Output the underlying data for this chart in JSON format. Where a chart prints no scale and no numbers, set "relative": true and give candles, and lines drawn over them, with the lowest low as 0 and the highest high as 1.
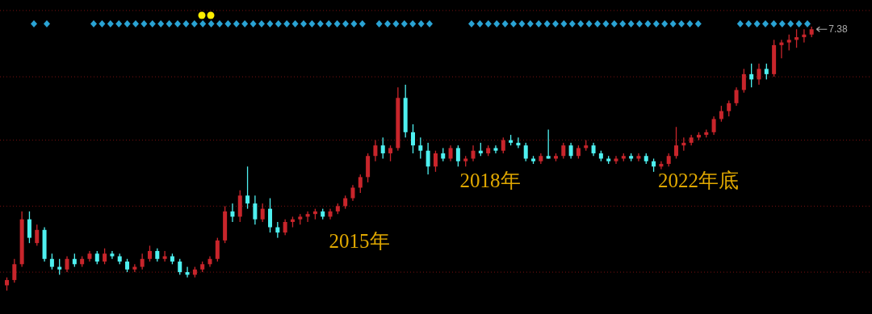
{
  "chart_data": {
    "type": "candlestick",
    "relative": true,
    "categories": [
      null,
      null,
      null,
      null,
      null,
      null,
      null,
      null,
      null,
      null,
      null,
      null,
      null,
      null,
      null,
      null,
      null,
      null,
      null,
      null,
      null,
      null,
      null,
      null,
      null,
      null,
      null,
      null,
      null,
      null,
      null,
      null,
      null,
      null,
      null,
      null,
      null,
      null,
      null,
      null,
      null,
      null,
      null,
      null,
      null,
      null,
      null,
      null,
      null,
      null,
      null,
      null,
      null,
      null,
      null,
      null,
      null,
      null,
      null,
      null,
      null,
      null,
      null,
      null,
      null,
      null,
      null,
      null,
      null,
      null,
      null,
      null,
      null,
      null,
      null,
      null,
      null,
      null,
      null,
      null,
      null,
      null,
      null,
      null,
      null,
      null,
      null,
      null,
      null,
      null,
      null,
      null,
      null,
      null,
      null,
      null,
      null,
      null,
      null,
      null,
      null,
      null,
      null,
      null,
      null,
      null,
      null,
      null
    ],
    "ohlc": [
      [
        0.02,
        0.05,
        0,
        0.04
      ],
      [
        0.04,
        0.12,
        0.03,
        0.1
      ],
      [
        0.1,
        0.3,
        0.09,
        0.27
      ],
      [
        0.27,
        0.3,
        0.18,
        0.2
      ],
      [
        0.18,
        0.25,
        0.17,
        0.23
      ],
      [
        0.23,
        0.24,
        0.11,
        0.12
      ],
      [
        0.12,
        0.14,
        0.08,
        0.09
      ],
      [
        0.09,
        0.12,
        0.06,
        0.08
      ],
      [
        0.08,
        0.13,
        0.07,
        0.12
      ],
      [
        0.12,
        0.14,
        0.09,
        0.1
      ],
      [
        0.1,
        0.13,
        0.09,
        0.12
      ],
      [
        0.12,
        0.15,
        0.11,
        0.14
      ],
      [
        0.14,
        0.15,
        0.1,
        0.11
      ],
      [
        0.11,
        0.16,
        0.1,
        0.14
      ],
      [
        0.14,
        0.15,
        0.12,
        0.13
      ],
      [
        0.13,
        0.14,
        0.1,
        0.11
      ],
      [
        0.11,
        0.12,
        0.07,
        0.08
      ],
      [
        0.08,
        0.1,
        0.07,
        0.09
      ],
      [
        0.09,
        0.14,
        0.08,
        0.12
      ],
      [
        0.12,
        0.17,
        0.11,
        0.15
      ],
      [
        0.15,
        0.16,
        0.11,
        0.12
      ],
      [
        0.12,
        0.15,
        0.11,
        0.13
      ],
      [
        0.13,
        0.14,
        0.1,
        0.11
      ],
      [
        0.11,
        0.12,
        0.06,
        0.07
      ],
      [
        0.07,
        0.09,
        0.05,
        0.06
      ],
      [
        0.06,
        0.09,
        0.05,
        0.08
      ],
      [
        0.08,
        0.11,
        0.07,
        0.1
      ],
      [
        0.1,
        0.13,
        0.09,
        0.12
      ],
      [
        0.12,
        0.2,
        0.11,
        0.19
      ],
      [
        0.19,
        0.32,
        0.18,
        0.3
      ],
      [
        0.3,
        0.33,
        0.26,
        0.28
      ],
      [
        0.28,
        0.38,
        0.26,
        0.36
      ],
      [
        0.36,
        0.47,
        0.31,
        0.33
      ],
      [
        0.33,
        0.36,
        0.25,
        0.27
      ],
      [
        0.27,
        0.33,
        0.26,
        0.31
      ],
      [
        0.31,
        0.35,
        0.22,
        0.24
      ],
      [
        0.24,
        0.26,
        0.2,
        0.22
      ],
      [
        0.22,
        0.27,
        0.21,
        0.26
      ],
      [
        0.26,
        0.28,
        0.24,
        0.27
      ],
      [
        0.27,
        0.29,
        0.25,
        0.28
      ],
      [
        0.28,
        0.3,
        0.26,
        0.29
      ],
      [
        0.29,
        0.31,
        0.27,
        0.3
      ],
      [
        0.3,
        0.31,
        0.27,
        0.28
      ],
      [
        0.28,
        0.31,
        0.27,
        0.3
      ],
      [
        0.3,
        0.33,
        0.29,
        0.32
      ],
      [
        0.32,
        0.36,
        0.31,
        0.35
      ],
      [
        0.35,
        0.4,
        0.34,
        0.39
      ],
      [
        0.39,
        0.44,
        0.37,
        0.43
      ],
      [
        0.43,
        0.52,
        0.41,
        0.51
      ],
      [
        0.51,
        0.57,
        0.49,
        0.55
      ],
      [
        0.55,
        0.58,
        0.5,
        0.52
      ],
      [
        0.52,
        0.55,
        0.49,
        0.54
      ],
      [
        0.54,
        0.77,
        0.53,
        0.73
      ],
      [
        0.73,
        0.78,
        0.58,
        0.6
      ],
      [
        0.6,
        0.63,
        0.52,
        0.55
      ],
      [
        0.55,
        0.58,
        0.5,
        0.53
      ],
      [
        0.53,
        0.56,
        0.44,
        0.47
      ],
      [
        0.47,
        0.53,
        0.45,
        0.52
      ],
      [
        0.52,
        0.54,
        0.49,
        0.5
      ],
      [
        0.5,
        0.55,
        0.49,
        0.54
      ],
      [
        0.54,
        0.55,
        0.47,
        0.49
      ],
      [
        0.49,
        0.51,
        0.47,
        0.5
      ],
      [
        0.5,
        0.55,
        0.49,
        0.53
      ],
      [
        0.53,
        0.56,
        0.51,
        0.52
      ],
      [
        0.52,
        0.55,
        0.51,
        0.54
      ],
      [
        0.54,
        0.55,
        0.52,
        0.53
      ],
      [
        0.53,
        0.58,
        0.52,
        0.57
      ],
      [
        0.57,
        0.59,
        0.55,
        0.56
      ],
      [
        0.56,
        0.58,
        0.54,
        0.55
      ],
      [
        0.55,
        0.56,
        0.49,
        0.5
      ],
      [
        0.5,
        0.51,
        0.48,
        0.49
      ],
      [
        0.49,
        0.52,
        0.48,
        0.51
      ],
      [
        0.51,
        0.61,
        0.5,
        0.5
      ],
      [
        0.5,
        0.52,
        0.49,
        0.51
      ],
      [
        0.51,
        0.56,
        0.5,
        0.55
      ],
      [
        0.55,
        0.56,
        0.5,
        0.51
      ],
      [
        0.51,
        0.55,
        0.5,
        0.54
      ],
      [
        0.54,
        0.57,
        0.53,
        0.55
      ],
      [
        0.55,
        0.56,
        0.51,
        0.52
      ],
      [
        0.52,
        0.53,
        0.49,
        0.5
      ],
      [
        0.5,
        0.51,
        0.48,
        0.49
      ],
      [
        0.49,
        0.51,
        0.48,
        0.5
      ],
      [
        0.5,
        0.52,
        0.49,
        0.51
      ],
      [
        0.51,
        0.52,
        0.49,
        0.5
      ],
      [
        0.5,
        0.52,
        0.49,
        0.51
      ],
      [
        0.51,
        0.52,
        0.48,
        0.49
      ],
      [
        0.49,
        0.5,
        0.45,
        0.47
      ],
      [
        0.47,
        0.49,
        0.46,
        0.48
      ],
      [
        0.48,
        0.52,
        0.47,
        0.51
      ],
      [
        0.51,
        0.62,
        0.5,
        0.55
      ],
      [
        0.55,
        0.58,
        0.53,
        0.56
      ],
      [
        0.56,
        0.59,
        0.55,
        0.58
      ],
      [
        0.58,
        0.6,
        0.57,
        0.59
      ],
      [
        0.59,
        0.61,
        0.58,
        0.6
      ],
      [
        0.6,
        0.66,
        0.59,
        0.65
      ],
      [
        0.65,
        0.7,
        0.64,
        0.68
      ],
      [
        0.68,
        0.72,
        0.66,
        0.71
      ],
      [
        0.71,
        0.77,
        0.7,
        0.76
      ],
      [
        0.76,
        0.84,
        0.75,
        0.82
      ],
      [
        0.82,
        0.86,
        0.77,
        0.8
      ],
      [
        0.8,
        0.86,
        0.78,
        0.84
      ],
      [
        0.84,
        0.86,
        0.8,
        0.82
      ],
      [
        0.82,
        0.95,
        0.81,
        0.93
      ],
      [
        0.93,
        0.95,
        0.88,
        0.94
      ],
      [
        0.94,
        0.97,
        0.91,
        0.95
      ],
      [
        0.95,
        0.99,
        0.92,
        0.96
      ],
      [
        0.96,
        0.99,
        0.94,
        0.97
      ],
      [
        0.97,
        1.0,
        0.96,
        0.99
      ]
    ],
    "colors": [
      "#c8252b",
      "#c8252b",
      "#c8252b",
      "#4ef0f0",
      "#c8252b",
      "#4ef0f0",
      "#4ef0f0",
      "#4ef0f0",
      "#c8252b",
      "#4ef0f0",
      "#c8252b",
      "#c8252b",
      "#4ef0f0",
      "#c8252b",
      "#4ef0f0",
      "#4ef0f0",
      "#4ef0f0",
      "#c8252b",
      "#c8252b",
      "#c8252b",
      "#4ef0f0",
      "#c8252b",
      "#4ef0f0",
      "#4ef0f0",
      "#4ef0f0",
      "#c8252b",
      "#c8252b",
      "#c8252b",
      "#c8252b",
      "#c8252b",
      "#4ef0f0",
      "#c8252b",
      "#4ef0f0",
      "#4ef0f0",
      "#c8252b",
      "#4ef0f0",
      "#4ef0f0",
      "#c8252b",
      "#c8252b",
      "#c8252b",
      "#c8252b",
      "#c8252b",
      "#4ef0f0",
      "#c8252b",
      "#c8252b",
      "#c8252b",
      "#c8252b",
      "#c8252b",
      "#c8252b",
      "#c8252b",
      "#4ef0f0",
      "#c8252b",
      "#c8252b",
      "#4ef0f0",
      "#4ef0f0",
      "#4ef0f0",
      "#4ef0f0",
      "#c8252b",
      "#4ef0f0",
      "#c8252b",
      "#4ef0f0",
      "#c8252b",
      "#c8252b",
      "#4ef0f0",
      "#c8252b",
      "#4ef0f0",
      "#c8252b",
      "#4ef0f0",
      "#4ef0f0",
      "#4ef0f0",
      "#4ef0f0",
      "#c8252b",
      "#4ef0f0",
      "#c8252b",
      "#c8252b",
      "#4ef0f0",
      "#c8252b",
      "#c8252b",
      "#4ef0f0",
      "#4ef0f0",
      "#4ef0f0",
      "#c8252b",
      "#c8252b",
      "#4ef0f0",
      "#c8252b",
      "#4ef0f0",
      "#4ef0f0",
      "#c8252b",
      "#c8252b",
      "#c8252b",
      "#c8252b",
      "#c8252b",
      "#c8252b",
      "#c8252b",
      "#c8252b",
      "#c8252b",
      "#c8252b",
      "#c8252b",
      "#c8252b",
      "#4ef0f0",
      "#c8252b",
      "#4ef0f0",
      "#c8252b",
      "#c8252b",
      "#c8252b",
      "#c8252b",
      "#c8252b",
      "#c8252b"
    ],
    "ref_lines": [
      {
        "axis": "y",
        "value": 0.81,
        "color": "#7a1010",
        "line_style": "dotted"
      },
      {
        "axis": "y",
        "value": 0.57,
        "color": "#7a1010",
        "line_style": "dotted"
      },
      {
        "axis": "y",
        "value": 0.32,
        "color": "#7a1010",
        "line_style": "dotted"
      },
      {
        "axis": "y",
        "value": 0.07,
        "color": "#7a1010",
        "line_style": "dotted"
      }
    ],
    "annotations": [
      "2015年",
      "2018年",
      "2022年底",
      "7.38"
    ]
  }
}
